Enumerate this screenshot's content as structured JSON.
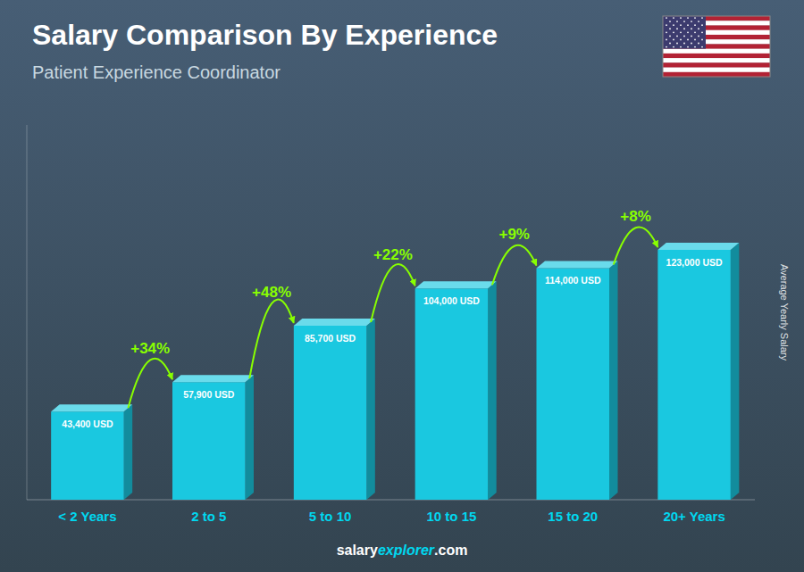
{
  "chart_data": {
    "type": "bar",
    "title": "Salary Comparison By Experience",
    "subtitle": "Patient Experience Coordinator",
    "categories": [
      "< 2 Years",
      "2 to 5",
      "5 to 10",
      "10 to 15",
      "15 to 20",
      "20+ Years"
    ],
    "values": [
      43400,
      57900,
      85700,
      104000,
      114000,
      123000
    ],
    "value_labels": [
      "43,400 USD",
      "57,900 USD",
      "85,700 USD",
      "104,000 USD",
      "114,000 USD",
      "123,000 USD"
    ],
    "data_labels": true,
    "color": "#1ac8e0",
    "y_label": "Average Yearly Salary",
    "ylim": [
      0,
      184500
    ],
    "yticks": [],
    "tick_labels": "x",
    "grid": false,
    "annotations": [
      "+34%",
      "+48%",
      "+22%",
      "+9%",
      "+8%"
    ],
    "watermark": [
      "salary",
      "explorer",
      ".com"
    ]
  }
}
